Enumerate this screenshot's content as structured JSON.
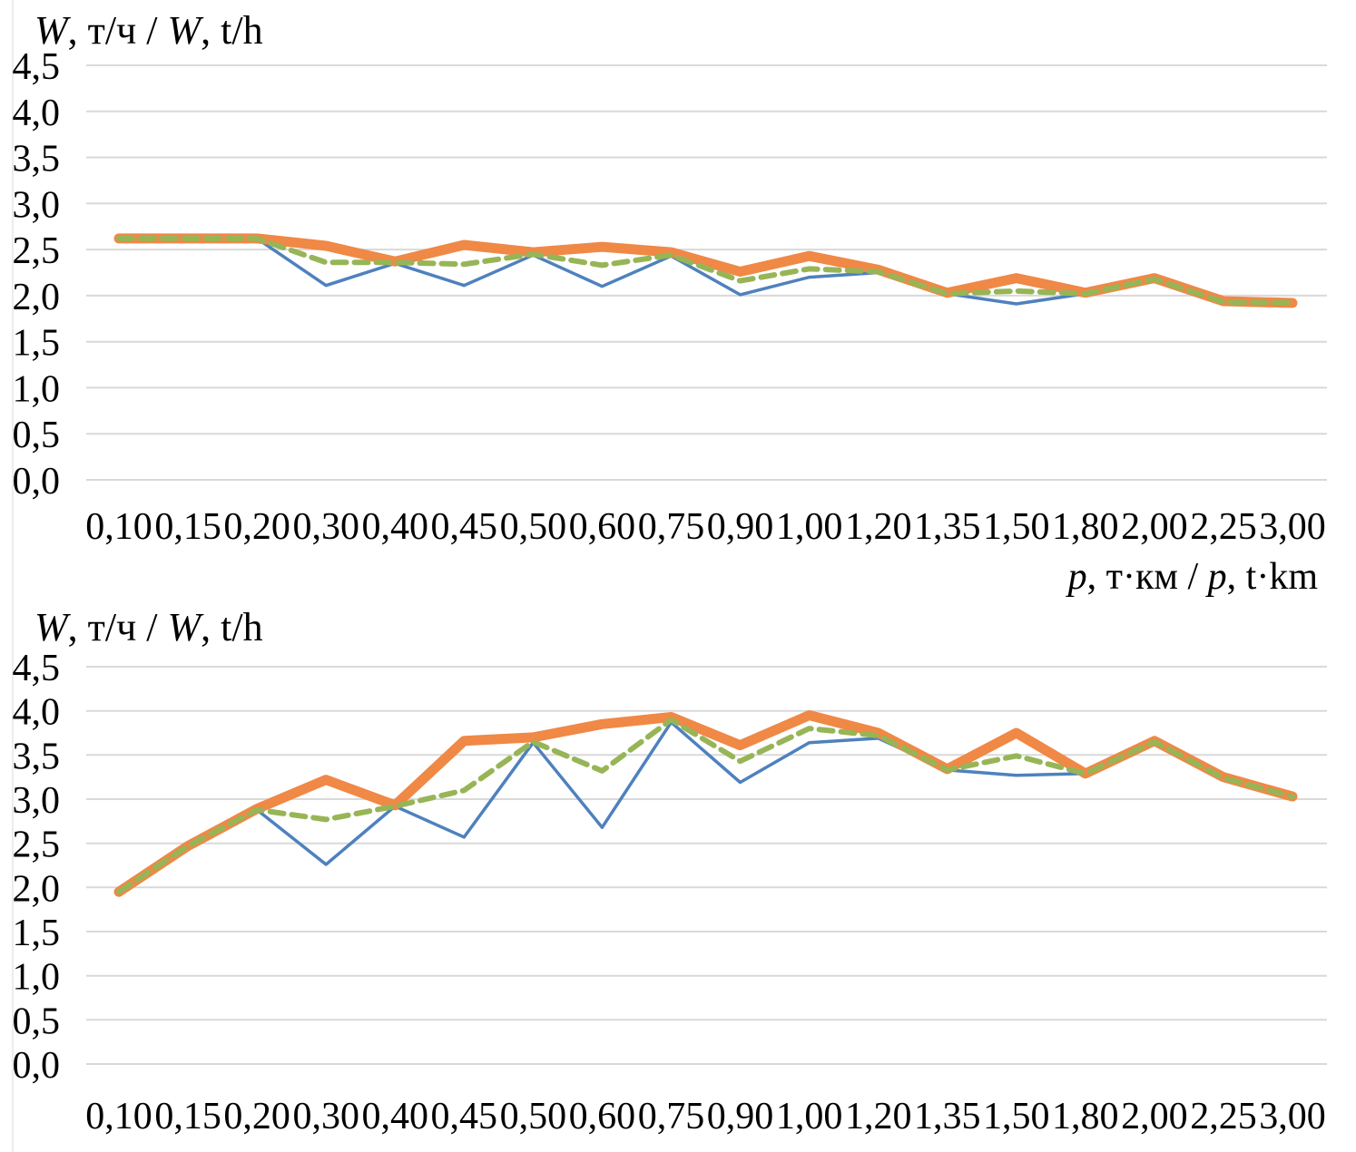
{
  "chart_data": [
    {
      "id": "top-chart",
      "type": "line",
      "title_plain": "W, т/ч / W, t/h",
      "title_parts": [
        {
          "text": "W",
          "italic": true
        },
        {
          "text": ", т/ч / ",
          "italic": false
        },
        {
          "text": "W",
          "italic": true
        },
        {
          "text": ", t/h",
          "italic": false
        }
      ],
      "xlabel_plain": "p, т·км / p, t·km",
      "xlabel_parts": [
        {
          "text": "p",
          "italic": true
        },
        {
          "text": ", т·км / ",
          "italic": false
        },
        {
          "text": "p",
          "italic": true
        },
        {
          "text": ", t·km",
          "italic": false
        }
      ],
      "categories": [
        "0,10",
        "0,15",
        "0,20",
        "0,30",
        "0,40",
        "0,45",
        "0,50",
        "0,60",
        "0,75",
        "0,90",
        "1,00",
        "1,20",
        "1,35",
        "1,50",
        "1,80",
        "2,00",
        "2,25",
        "3,00"
      ],
      "ytick_labels": [
        "0,0",
        "0,5",
        "1,0",
        "1,5",
        "2,0",
        "2,5",
        "3,0",
        "3,5",
        "4,0",
        "4,5"
      ],
      "ylim": [
        0,
        4.5
      ],
      "ytick_step": 0.5,
      "grid": "horizontal",
      "grid_color": "#d9d9d9",
      "legend": "none",
      "series": [
        {
          "name": "thin-solid-blue",
          "color": "#4e81bd",
          "stroke_width": 3.5,
          "dash": "",
          "values": [
            2.62,
            2.62,
            2.62,
            2.11,
            2.35,
            2.11,
            2.44,
            2.1,
            2.43,
            2.01,
            2.2,
            2.25,
            2.02,
            1.91,
            2.02,
            2.18,
            1.93,
            1.92
          ]
        },
        {
          "name": "thick-solid-orange",
          "color": "#f08846",
          "stroke_width": 11,
          "dash": "",
          "values": [
            2.62,
            2.62,
            2.62,
            2.54,
            2.37,
            2.55,
            2.47,
            2.53,
            2.47,
            2.26,
            2.43,
            2.28,
            2.03,
            2.19,
            2.03,
            2.19,
            1.94,
            1.92
          ]
        },
        {
          "name": "dashed-green",
          "color": "#97b556",
          "stroke_width": 6,
          "dash": "15 9",
          "values": [
            2.62,
            2.62,
            2.62,
            2.36,
            2.36,
            2.34,
            2.45,
            2.33,
            2.44,
            2.16,
            2.29,
            2.26,
            2.02,
            2.05,
            2.02,
            2.18,
            1.93,
            1.92
          ]
        }
      ]
    },
    {
      "id": "bottom-chart",
      "type": "line",
      "title_plain": "W, т/ч / W, t/h",
      "title_parts": [
        {
          "text": "W",
          "italic": true
        },
        {
          "text": ", т/ч / ",
          "italic": false
        },
        {
          "text": "W",
          "italic": true
        },
        {
          "text": ", t/h",
          "italic": false
        }
      ],
      "categories": [
        "0,10",
        "0,15",
        "0,20",
        "0,30",
        "0,40",
        "0,45",
        "0,50",
        "0,60",
        "0,75",
        "0,90",
        "1,00",
        "1,20",
        "1,35",
        "1,50",
        "1,80",
        "2,00",
        "2,25",
        "3,00"
      ],
      "ytick_labels": [
        "0,0",
        "0,5",
        "1,0",
        "1,5",
        "2,0",
        "2,5",
        "3,0",
        "3,5",
        "4,0",
        "4,5"
      ],
      "ylim": [
        0,
        4.5
      ],
      "ytick_step": 0.5,
      "grid": "horizontal",
      "grid_color": "#d9d9d9",
      "legend": "none",
      "series": [
        {
          "name": "thin-solid-blue",
          "color": "#4e81bd",
          "stroke_width": 3.5,
          "dash": "",
          "values": [
            1.95,
            2.47,
            2.88,
            2.26,
            2.92,
            2.57,
            3.64,
            2.68,
            3.87,
            3.19,
            3.64,
            3.69,
            3.33,
            3.27,
            3.29,
            3.65,
            3.24,
            3.03
          ]
        },
        {
          "name": "thick-solid-orange",
          "color": "#f08846",
          "stroke_width": 11,
          "dash": "",
          "values": [
            1.95,
            2.47,
            2.89,
            3.22,
            2.93,
            3.66,
            3.7,
            3.85,
            3.93,
            3.61,
            3.95,
            3.75,
            3.34,
            3.75,
            3.29,
            3.66,
            3.25,
            3.03
          ]
        },
        {
          "name": "dashed-green",
          "color": "#97b556",
          "stroke_width": 6,
          "dash": "15 9",
          "values": [
            1.95,
            2.47,
            2.88,
            2.77,
            2.92,
            3.1,
            3.65,
            3.32,
            3.9,
            3.43,
            3.8,
            3.72,
            3.33,
            3.49,
            3.29,
            3.65,
            3.24,
            3.03
          ]
        }
      ]
    }
  ]
}
